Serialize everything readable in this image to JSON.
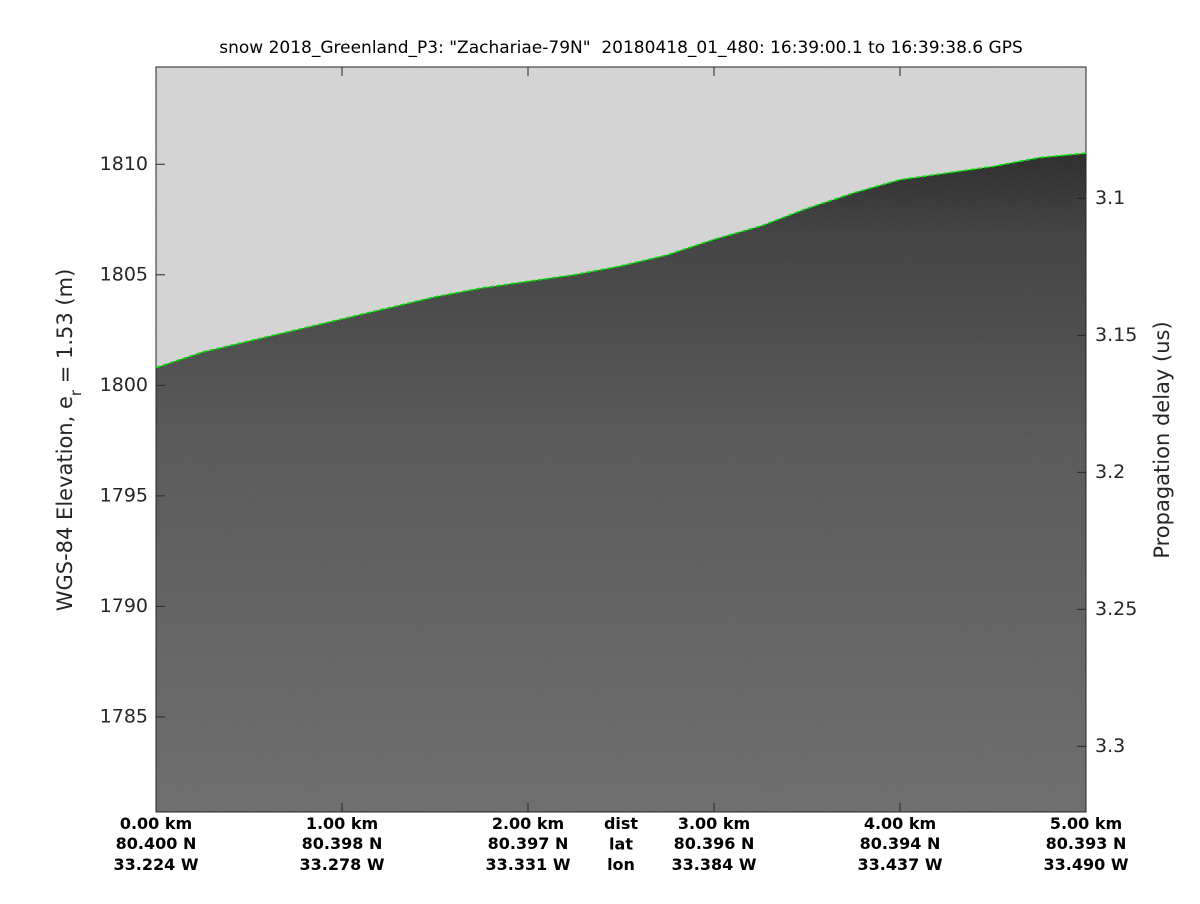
{
  "chart_data": {
    "type": "line",
    "title": "snow 2018_Greenland_P3: \"Zachariae-79N\"  20180418_01_480: 16:39:00.1 to 16:39:38.6 GPS",
    "ylabel": [
      "WGS-84 Elevation, e",
      "r",
      " = 1.53 (m)"
    ],
    "y2label": "Propagation delay (us)",
    "xlim": [
      0,
      5
    ],
    "xticks": [
      {
        "value": 0,
        "label": "0.00 km"
      },
      {
        "value": 1,
        "label": "1.00 km"
      },
      {
        "value": 2,
        "label": "2.00 km"
      },
      {
        "value": 3,
        "label": "3.00 km"
      },
      {
        "value": 4,
        "label": "4.00 km"
      },
      {
        "value": 5,
        "label": "5.00 km"
      }
    ],
    "lat_labels": [
      "80.400 N",
      "80.398 N",
      "80.397 N",
      "80.396 N",
      "80.394 N",
      "80.393 N"
    ],
    "lon_labels": [
      "33.224 W",
      "33.278 W",
      "33.331 W",
      "33.384 W",
      "33.437 W",
      "33.490 W"
    ],
    "row_labels": [
      "dist",
      "lat",
      "lon"
    ],
    "ylim": [
      1780.7,
      1814.4
    ],
    "yticks": [
      1785,
      1790,
      1795,
      1800,
      1805,
      1810
    ],
    "y2lim": [
      3.324,
      3.052
    ],
    "y2ticks": [
      3.1,
      3.15,
      3.2,
      3.25,
      3.3
    ],
    "series": [
      {
        "color": "#00e000",
        "x": [
          0,
          0.25,
          0.5,
          0.75,
          1,
          1.25,
          1.5,
          1.75,
          2,
          2.25,
          2.5,
          2.75,
          3,
          3.25,
          3.5,
          3.75,
          4,
          4.25,
          4.5,
          4.75,
          5
        ],
        "values": [
          1800.8,
          1801.5,
          1802.0,
          1802.5,
          1803.0,
          1803.5,
          1804.0,
          1804.4,
          1804.7,
          1805.0,
          1805.4,
          1805.9,
          1806.6,
          1807.2,
          1808.0,
          1808.7,
          1809.3,
          1809.6,
          1809.9,
          1810.3,
          1810.5
        ]
      }
    ]
  }
}
